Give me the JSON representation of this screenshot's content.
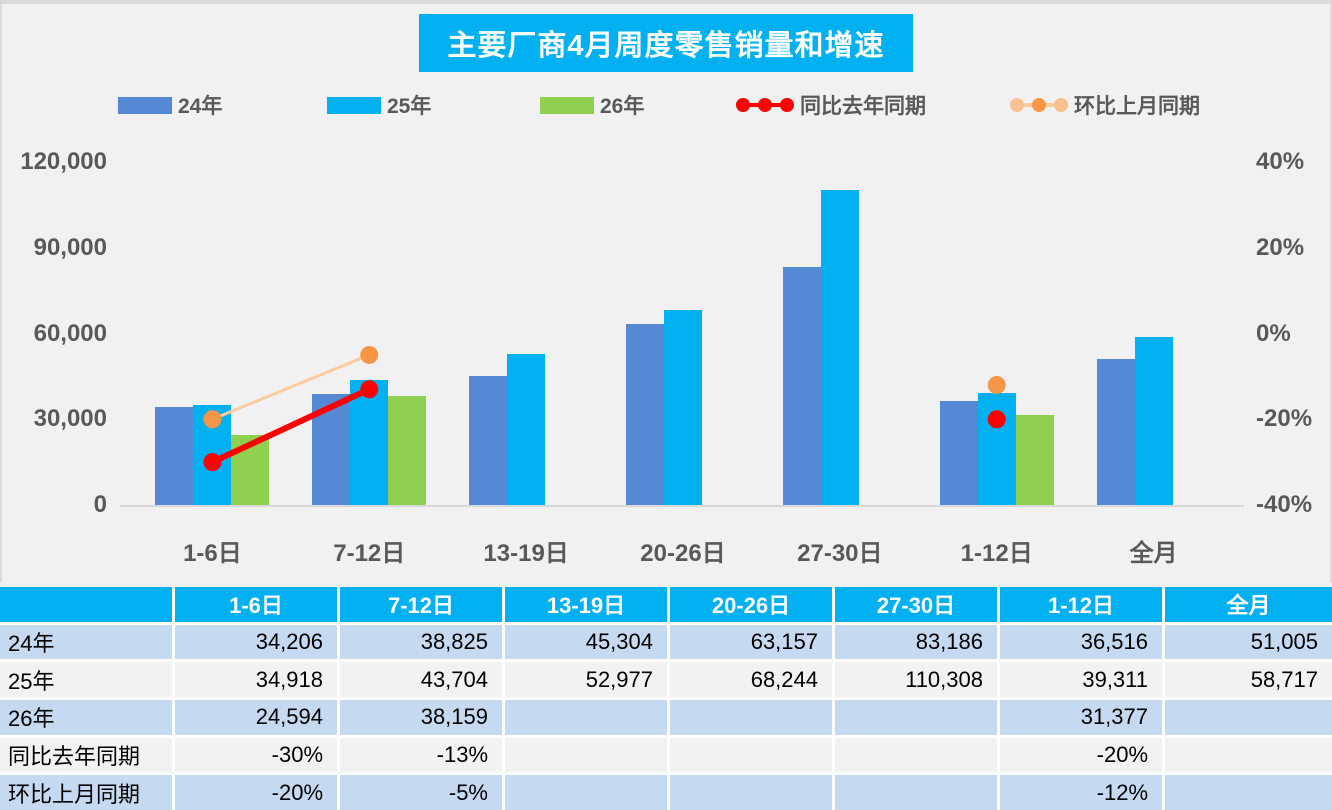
{
  "title": "主要厂商4月周度零售销量和增速",
  "colors": {
    "cyan": "#00b0f0",
    "steel_blue": "#5589d4",
    "green": "#90d050",
    "red": "#fe0000",
    "orange": "#f79646",
    "orange_light": "#fbcba0",
    "axis_text": "#595959",
    "table_row_blue": "#c5d9f1",
    "table_row_gray": "#f2f2f2",
    "background": "#f1f1f1"
  },
  "legend": {
    "items": [
      {
        "label": "24年",
        "type": "bar",
        "color": "#5589d4"
      },
      {
        "label": "25年",
        "type": "bar",
        "color": "#00b0f0"
      },
      {
        "label": "26年",
        "type": "bar",
        "color": "#90d050"
      },
      {
        "label": "同比去年同期",
        "type": "line",
        "color": "#fe0000",
        "marker_colors": [
          "#fe0000",
          "#fe0000",
          "#fe0000"
        ]
      },
      {
        "label": "环比上月同期",
        "type": "line",
        "color": "#fbcba0",
        "marker_colors": [
          "#fac08f",
          "#f79646",
          "#fac08f"
        ]
      }
    ]
  },
  "chart_data": {
    "type": "bar+line",
    "title": "主要厂商4月周度零售销量和增速",
    "categories": [
      "1-6日",
      "7-12日",
      "13-19日",
      "20-26日",
      "27-30日",
      "1-12日",
      "全月"
    ],
    "bar_series": [
      {
        "name": "24年",
        "color": "#5589d4",
        "values": [
          34206,
          38825,
          45304,
          63157,
          83186,
          36516,
          51005
        ]
      },
      {
        "name": "25年",
        "color": "#00b0f0",
        "values": [
          34918,
          43704,
          52977,
          68244,
          110308,
          39311,
          58717
        ]
      },
      {
        "name": "26年",
        "color": "#90d050",
        "values": [
          24594,
          38159,
          null,
          null,
          null,
          31377,
          null
        ]
      }
    ],
    "line_series": [
      {
        "name": "同比去年同期",
        "axis": "right",
        "color": "#fe0000",
        "marker_color": "#fe0000",
        "stroke_width": 6,
        "values": [
          -30,
          -13,
          null,
          null,
          null,
          -20,
          null
        ]
      },
      {
        "name": "环比上月同期",
        "axis": "right",
        "color": "#fbcba0",
        "marker_color": "#f79646",
        "stroke_width": 3,
        "values": [
          -20,
          -5,
          null,
          null,
          null,
          -12,
          null
        ]
      }
    ],
    "left_axis": {
      "min": 0,
      "max": 120000,
      "ticks": [
        "120,000",
        "90,000",
        "60,000",
        "30,000",
        "0"
      ]
    },
    "right_axis": {
      "min": -40,
      "max": 40,
      "ticks": [
        "40%",
        "20%",
        "0%",
        "-20%",
        "-40%"
      ]
    },
    "grid": false,
    "legend_position": "top"
  },
  "table": {
    "header": [
      "",
      "1-6日",
      "7-12日",
      "13-19日",
      "20-26日",
      "27-30日",
      "1-12日",
      "全月"
    ],
    "rows": [
      {
        "label": "24年",
        "values": [
          "34,206",
          "38,825",
          "45,304",
          "63,157",
          "83,186",
          "36,516",
          "51,005"
        ]
      },
      {
        "label": "25年",
        "values": [
          "34,918",
          "43,704",
          "52,977",
          "68,244",
          "110,308",
          "39,311",
          "58,717"
        ]
      },
      {
        "label": "26年",
        "values": [
          "24,594",
          "38,159",
          "",
          "",
          "",
          "31,377",
          ""
        ]
      },
      {
        "label": "同比去年同期",
        "values": [
          "-30%",
          "-13%",
          "",
          "",
          "",
          "-20%",
          ""
        ]
      },
      {
        "label": "环比上月同期",
        "values": [
          "-20%",
          "-5%",
          "",
          "",
          "",
          "-12%",
          ""
        ]
      }
    ]
  }
}
